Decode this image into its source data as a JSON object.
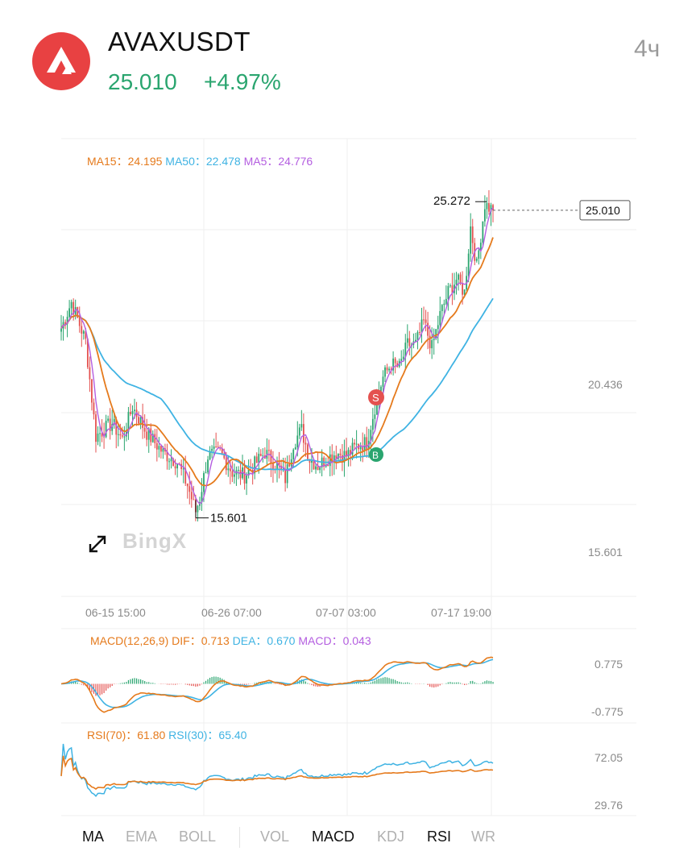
{
  "header": {
    "symbol": "AVAXUSDT",
    "price": "25.010",
    "change": "+4.97%",
    "timeframe": "4ч",
    "logo_icon": "avalanche-logo-icon"
  },
  "colors": {
    "up": "#2aa56f",
    "down": "#e4514f",
    "ma15": "#e57a1c",
    "ma50": "#3fb3e3",
    "ma5": "#b45ee0",
    "brand": "#e84142"
  },
  "main_legend": {
    "ma15": "MA15：24.195",
    "ma50": "MA50：22.478",
    "ma5": "MA5：24.776"
  },
  "macd_legend": {
    "title": "MACD(12,26,9)",
    "dif": "DIF：0.713",
    "dea": "DEA：0.670",
    "macd": "MACD：0.043"
  },
  "rsi_legend": {
    "rsi70": "RSI(70)：61.80",
    "rsi30": "RSI(30)：65.40"
  },
  "watermark": "BingX",
  "tabs": [
    {
      "label": "MA",
      "active": true
    },
    {
      "label": "EMA",
      "active": false
    },
    {
      "label": "BOLL",
      "active": false
    },
    {
      "label": "VOL",
      "active": false
    },
    {
      "label": "MACD",
      "active": true
    },
    {
      "label": "KDJ",
      "active": false
    },
    {
      "label": "RSI",
      "active": true
    },
    {
      "label": "WR",
      "active": false
    }
  ],
  "chart_data": [
    {
      "type": "candlestick",
      "title": "AVAXUSDT",
      "x_ticks": [
        "06-15 15:00",
        "06-26 07:00",
        "07-07 03:00",
        "07-17 19:00"
      ],
      "y_ticks": [
        "25.272",
        "20.436",
        "15.601"
      ],
      "ylim": [
        13.2,
        27.2
      ],
      "high_label": "25.272",
      "low_label": "15.601",
      "last_price_label": "25.010",
      "markers": [
        {
          "label": "S"
        },
        {
          "label": "B"
        }
      ],
      "price_path": [
        [
          0,
          21.4
        ],
        [
          5,
          22.2
        ],
        [
          12,
          21.0
        ],
        [
          17,
          18.1
        ],
        [
          25,
          18.5
        ],
        [
          30,
          18.0
        ],
        [
          35,
          19.0
        ],
        [
          42,
          18.2
        ],
        [
          50,
          17.6
        ],
        [
          57,
          17.3
        ],
        [
          62,
          16.6
        ],
        [
          66,
          15.8
        ],
        [
          68,
          16.2
        ],
        [
          72,
          17.5
        ],
        [
          78,
          17.6
        ],
        [
          84,
          17.0
        ],
        [
          90,
          16.9
        ],
        [
          96,
          17.3
        ],
        [
          100,
          17.6
        ],
        [
          106,
          17.2
        ],
        [
          110,
          16.8
        ],
        [
          114,
          17.9
        ],
        [
          118,
          18.3
        ],
        [
          122,
          17.4
        ],
        [
          126,
          17.2
        ],
        [
          130,
          17.4
        ],
        [
          135,
          17.6
        ],
        [
          140,
          17.5
        ],
        [
          145,
          17.8
        ],
        [
          150,
          17.9
        ],
        [
          154,
          19.0
        ],
        [
          158,
          19.9
        ],
        [
          162,
          20.3
        ],
        [
          166,
          20.2
        ],
        [
          170,
          20.9
        ],
        [
          174,
          20.9
        ],
        [
          178,
          21.6
        ],
        [
          182,
          20.8
        ],
        [
          186,
          21.8
        ],
        [
          190,
          22.5
        ],
        [
          194,
          22.9
        ],
        [
          198,
          22.5
        ],
        [
          201,
          24.5
        ],
        [
          204,
          23.3
        ],
        [
          208,
          25.2
        ],
        [
          212,
          25.0
        ]
      ],
      "series": [
        {
          "name": "MA15",
          "last": 24.195
        },
        {
          "name": "MA50",
          "last": 22.478
        },
        {
          "name": "MA5",
          "last": 24.776
        }
      ]
    },
    {
      "type": "line",
      "title": "MACD(12,26,9)",
      "y_ticks": [
        "0.775",
        "-0.775"
      ],
      "ylim": [
        -1.05,
        1.05
      ],
      "series": [
        {
          "name": "DIF",
          "last": 0.713
        },
        {
          "name": "DEA",
          "last": 0.67
        },
        {
          "name": "MACD",
          "last": 0.043
        }
      ]
    },
    {
      "type": "line",
      "title": "RSI",
      "y_ticks": [
        "72.05",
        "29.76"
      ],
      "ylim": [
        20,
        82
      ],
      "series": [
        {
          "name": "RSI(70)",
          "last": 61.8
        },
        {
          "name": "RSI(30)",
          "last": 65.4
        }
      ]
    }
  ]
}
